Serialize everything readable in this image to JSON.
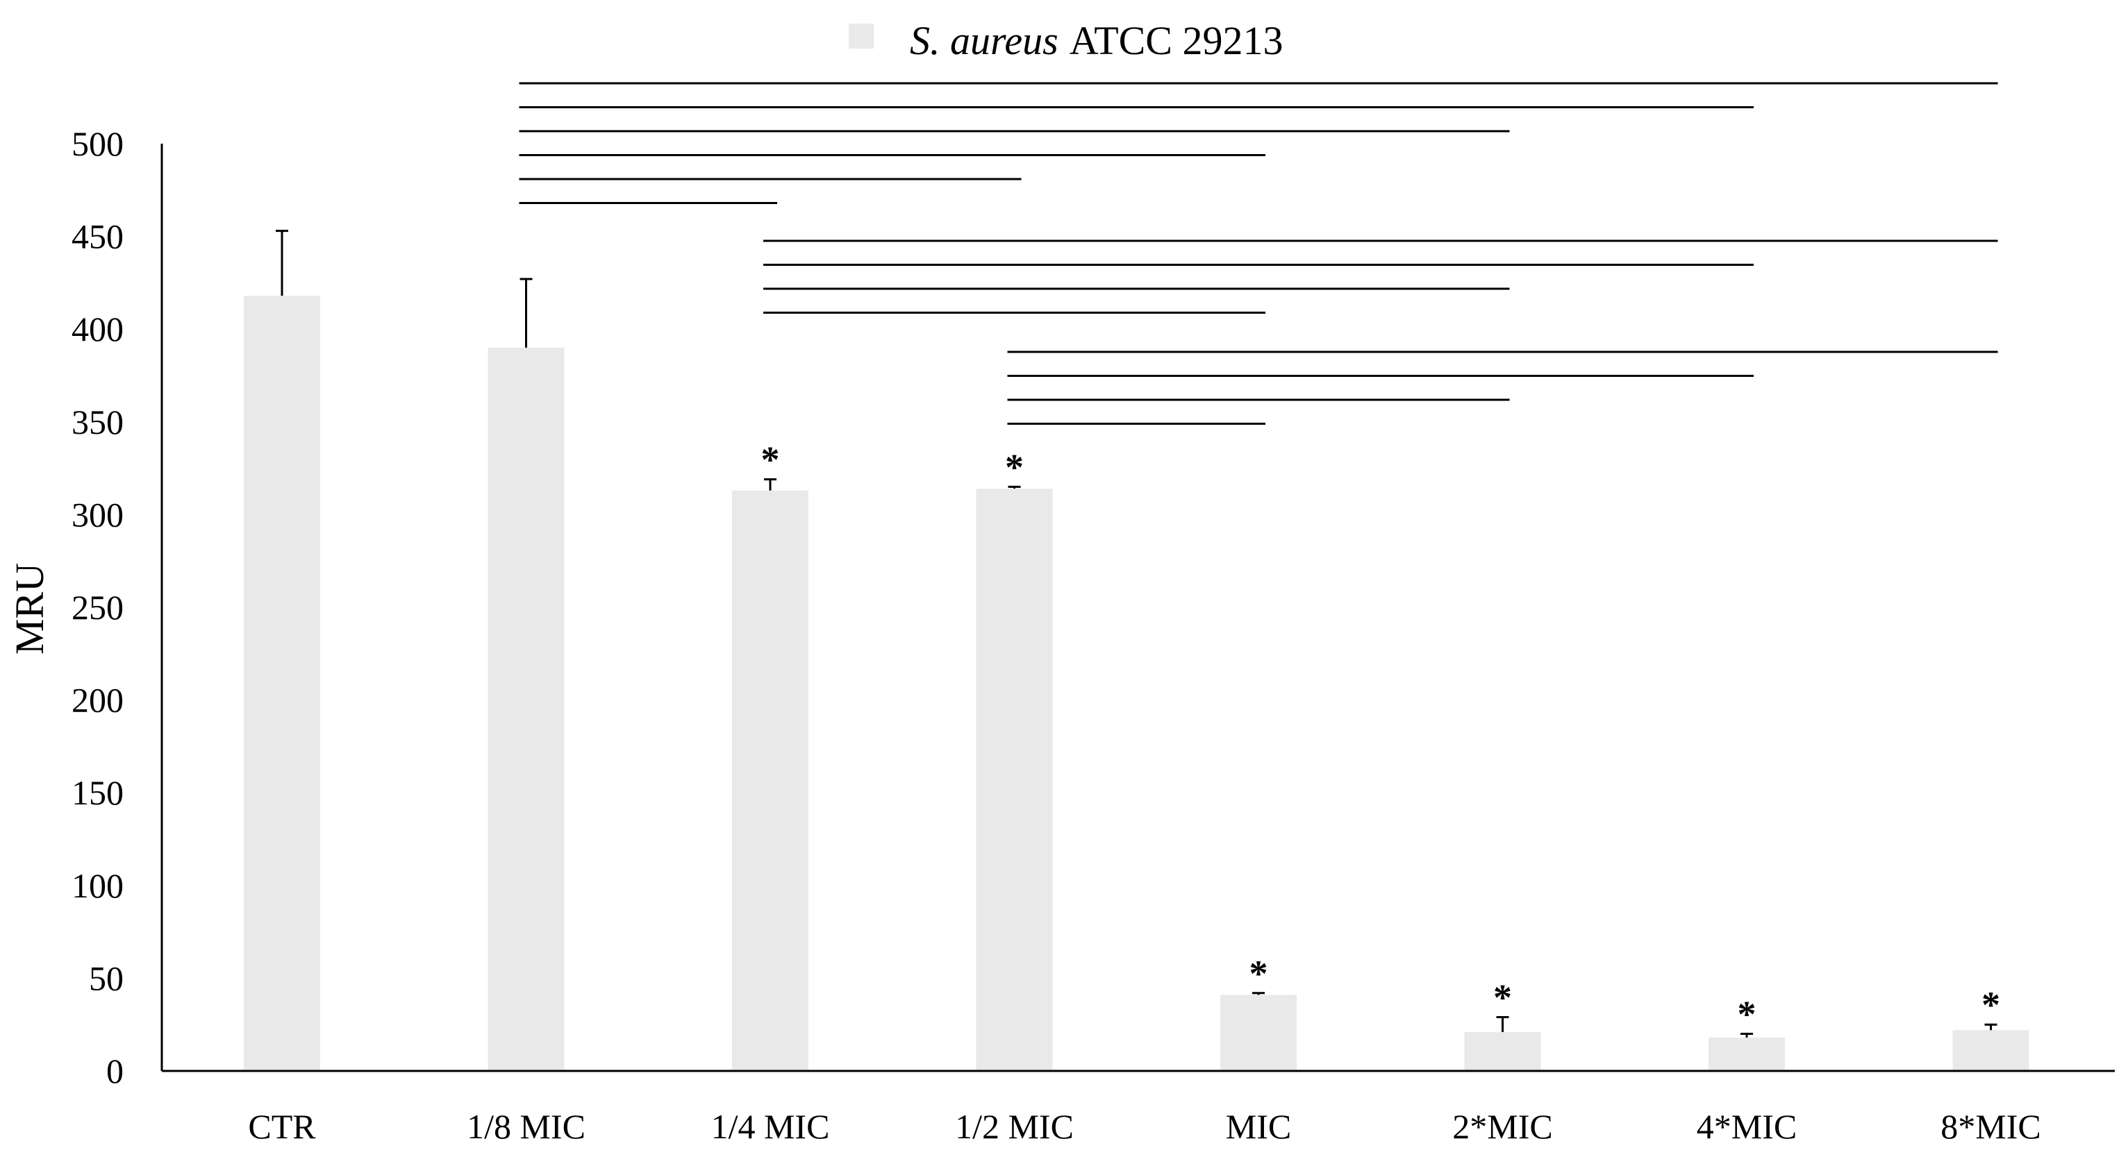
{
  "chart_data": {
    "type": "bar",
    "title": "",
    "xlabel": "",
    "ylabel": "MRU",
    "ylim": [
      0,
      500
    ],
    "yticks": [
      0,
      50,
      100,
      150,
      200,
      250,
      300,
      350,
      400,
      450,
      500
    ],
    "grid": false,
    "legend_position": "top-center",
    "categories": [
      "CTR",
      "1/8 MIC",
      "1/4 MIC",
      "1/2 MIC",
      "MIC",
      "2*MIC",
      "4*MIC",
      "8*MIC"
    ],
    "series": [
      {
        "name_italic": "S. aureus",
        "name_rest": "ATCC 29213",
        "color": "#e9e9e9",
        "values": [
          418,
          390,
          313,
          314,
          41,
          21,
          18,
          22
        ],
        "error": [
          35,
          37,
          6,
          1,
          1,
          8,
          2,
          3
        ]
      }
    ],
    "significance_markers": [
      {
        "category": "1/4 MIC",
        "label": "*"
      },
      {
        "category": "1/2 MIC",
        "label": "*"
      },
      {
        "category": "MIC",
        "label": "*"
      },
      {
        "category": "2*MIC",
        "label": "*"
      },
      {
        "category": "4*MIC",
        "label": "*"
      },
      {
        "category": "8*MIC",
        "label": "*"
      }
    ],
    "comparison_brackets": [
      {
        "from": "1/8 MIC",
        "to": "8*MIC"
      },
      {
        "from": "1/8 MIC",
        "to": "4*MIC"
      },
      {
        "from": "1/8 MIC",
        "to": "2*MIC"
      },
      {
        "from": "1/8 MIC",
        "to": "MIC"
      },
      {
        "from": "1/8 MIC",
        "to": "1/2 MIC"
      },
      {
        "from": "1/8 MIC",
        "to": "1/4 MIC"
      },
      {
        "from": "1/4 MIC",
        "to": "8*MIC"
      },
      {
        "from": "1/4 MIC",
        "to": "4*MIC"
      },
      {
        "from": "1/4 MIC",
        "to": "2*MIC"
      },
      {
        "from": "1/4 MIC",
        "to": "MIC"
      },
      {
        "from": "1/2 MIC",
        "to": "8*MIC"
      },
      {
        "from": "1/2 MIC",
        "to": "4*MIC"
      },
      {
        "from": "1/2 MIC",
        "to": "2*MIC"
      },
      {
        "from": "1/2 MIC",
        "to": "MIC"
      }
    ]
  }
}
